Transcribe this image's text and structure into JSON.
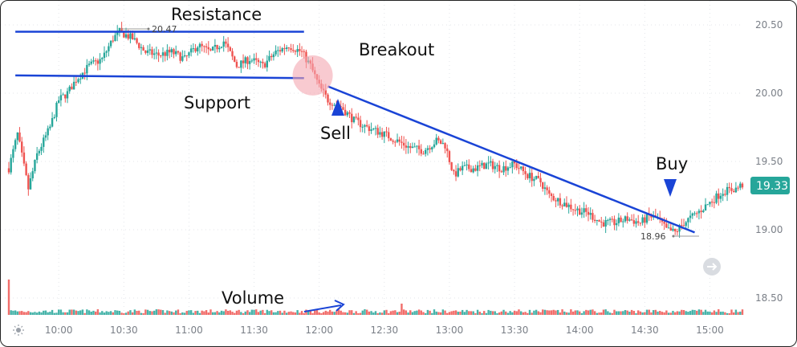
{
  "chart_data": {
    "type": "candlestick",
    "y_ticks": [
      "20.50",
      "20.00",
      "19.50",
      "19.00",
      "18.50"
    ],
    "x_ticks": [
      "10:00",
      "10:30",
      "11:00",
      "11:30",
      "12:00",
      "12:30",
      "13:00",
      "13:30",
      "14:00",
      "14:30",
      "15:00"
    ],
    "x_tick_times": [
      600,
      630,
      660,
      690,
      720,
      750,
      780,
      810,
      840,
      870,
      900
    ],
    "time_range": [
      577,
      915
    ],
    "price_range": [
      18.4,
      20.6
    ],
    "grid": "dotted",
    "last_price": "19.33",
    "high_label": "20.47",
    "low_label": "18.96",
    "colors": {
      "up": "#26a69a",
      "down": "#ef5350",
      "line": "#1a44d6",
      "last_price_bg": "#26a69a",
      "circle": "#f4a6b0"
    },
    "anchors": [
      [
        577,
        19.45
      ],
      [
        581,
        19.7
      ],
      [
        586,
        19.3
      ],
      [
        590,
        19.55
      ],
      [
        596,
        19.75
      ],
      [
        600,
        19.95
      ],
      [
        604,
        20.0
      ],
      [
        608,
        20.1
      ],
      [
        614,
        20.2
      ],
      [
        620,
        20.25
      ],
      [
        625,
        20.4
      ],
      [
        628,
        20.45
      ],
      [
        634,
        20.4
      ],
      [
        640,
        20.3
      ],
      [
        646,
        20.28
      ],
      [
        652,
        20.3
      ],
      [
        658,
        20.25
      ],
      [
        664,
        20.35
      ],
      [
        670,
        20.3
      ],
      [
        676,
        20.38
      ],
      [
        682,
        20.2
      ],
      [
        688,
        20.25
      ],
      [
        694,
        20.2
      ],
      [
        700,
        20.3
      ],
      [
        706,
        20.35
      ],
      [
        712,
        20.3
      ],
      [
        716,
        20.2
      ],
      [
        720,
        20.05
      ],
      [
        724,
        19.95
      ],
      [
        730,
        19.9
      ],
      [
        736,
        19.8
      ],
      [
        742,
        19.75
      ],
      [
        750,
        19.7
      ],
      [
        756,
        19.65
      ],
      [
        762,
        19.6
      ],
      [
        768,
        19.58
      ],
      [
        774,
        19.65
      ],
      [
        778,
        19.62
      ],
      [
        782,
        19.4
      ],
      [
        786,
        19.45
      ],
      [
        792,
        19.45
      ],
      [
        798,
        19.48
      ],
      [
        804,
        19.45
      ],
      [
        810,
        19.48
      ],
      [
        816,
        19.4
      ],
      [
        822,
        19.35
      ],
      [
        826,
        19.25
      ],
      [
        832,
        19.2
      ],
      [
        838,
        19.15
      ],
      [
        844,
        19.12
      ],
      [
        850,
        19.05
      ],
      [
        856,
        19.05
      ],
      [
        862,
        19.08
      ],
      [
        868,
        19.05
      ],
      [
        872,
        19.1
      ],
      [
        876,
        19.08
      ],
      [
        880,
        19.0
      ],
      [
        884,
        18.98
      ],
      [
        888,
        19.05
      ],
      [
        894,
        19.12
      ],
      [
        900,
        19.2
      ],
      [
        906,
        19.28
      ],
      [
        912,
        19.3
      ],
      [
        915,
        19.33
      ]
    ],
    "lines": [
      {
        "name": "Resistance",
        "from": [
          580,
          20.45
        ],
        "to": [
          713,
          20.45
        ]
      },
      {
        "name": "Support",
        "from": [
          580,
          20.13
        ],
        "to": [
          713,
          20.11
        ]
      },
      {
        "name": "Trendline",
        "from": [
          724,
          20.05
        ],
        "to": [
          893,
          18.98
        ]
      }
    ],
    "annotations": {
      "resistance": "Resistance",
      "support": "Support",
      "breakout": "Breakout",
      "sell": "Sell",
      "buy": "Buy",
      "volume": "Volume"
    }
  }
}
